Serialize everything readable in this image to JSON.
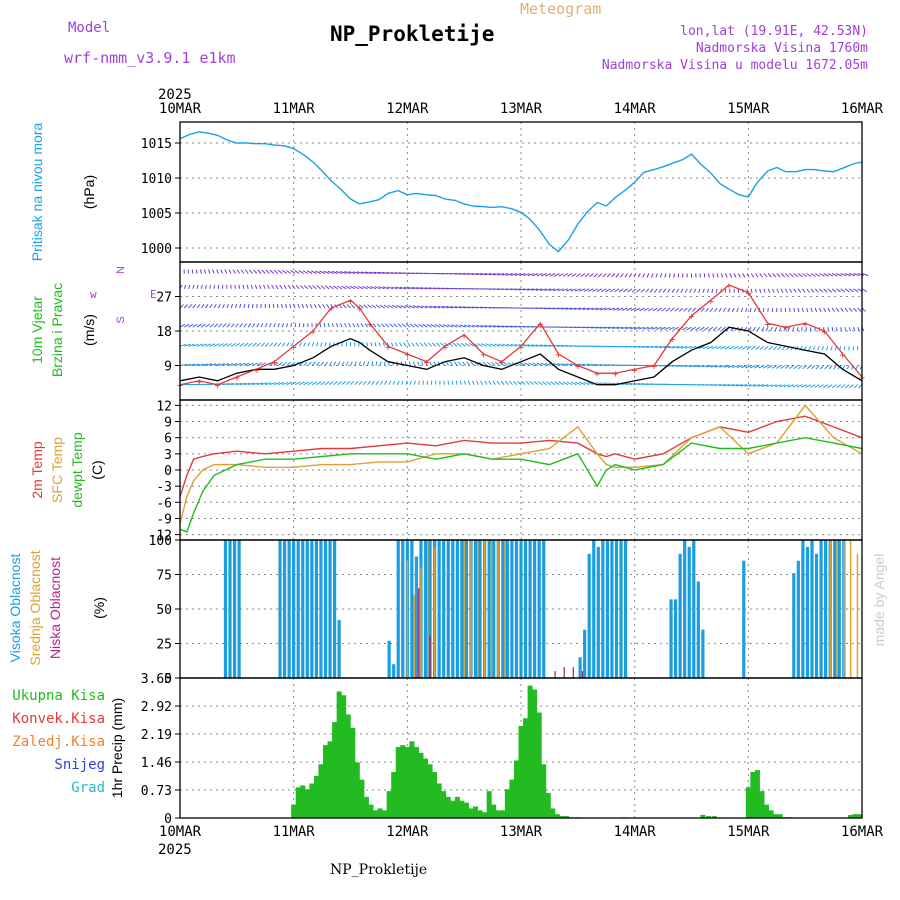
{
  "header": {
    "model_label": "Model",
    "model_name": "wrf-nmm_v3.9.1 e1km",
    "meteogram_label": "Meteogram",
    "station_name": "NP_Prokletije",
    "lonlat": "lon,lat (19.91E, 42.53N)",
    "altitude": "Nadmorska Visina 1760m",
    "model_altitude": "Nadmorska Visina u modelu 1672.05m",
    "footer_station": "NP_Prokletije",
    "watermark": "made by Angel"
  },
  "colors": {
    "pressure": "#1aa0e8",
    "wind_speed": "#000000",
    "gust": "#e23a3a",
    "temp_2m": "#e23a3a",
    "temp_sfc": "#e0a030",
    "dewpoint": "#22bb22",
    "cloud_high": "#1a9ee0",
    "cloud_mid": "#e0a030",
    "cloud_low": "#a0206a",
    "precip_total": "#22bb22",
    "grid": "#888888"
  },
  "chart_data": [
    {
      "type": "line",
      "panel": "pressure",
      "year": "2025",
      "x_tick_labels": [
        "10MAR",
        "11MAR",
        "12MAR",
        "13MAR",
        "14MAR",
        "15MAR",
        "16MAR"
      ],
      "ylabel_1": "Pritisak na nivou mora",
      "ylabel_2": "(hPa)",
      "yticks": [
        1000,
        1005,
        1010,
        1015
      ],
      "ylim": [
        998,
        1018
      ],
      "series": [
        {
          "name": "Pritisak na nivou mora",
          "x_days": [
            0,
            0.08,
            0.17,
            0.25,
            0.33,
            0.42,
            0.5,
            0.58,
            0.67,
            0.75,
            0.83,
            0.92,
            1.0,
            1.08,
            1.17,
            1.25,
            1.33,
            1.42,
            1.5,
            1.58,
            1.67,
            1.75,
            1.83,
            1.92,
            2.0,
            2.08,
            2.17,
            2.25,
            2.33,
            2.42,
            2.5,
            2.58,
            2.67,
            2.75,
            2.83,
            2.92,
            3.0,
            3.08,
            3.17,
            3.25,
            3.33,
            3.42,
            3.5,
            3.58,
            3.67,
            3.75,
            3.83,
            3.92,
            4.0,
            4.08,
            4.17,
            4.25,
            4.33,
            4.42,
            4.5,
            4.58,
            4.67,
            4.75,
            4.83,
            4.92,
            5.0,
            5.08,
            5.17,
            5.25,
            5.33,
            5.42,
            5.5,
            5.58,
            5.67,
            5.75,
            5.83,
            5.92,
            6.0
          ],
          "values": [
            1015.6,
            1016.2,
            1016.6,
            1016.4,
            1016.1,
            1015.4,
            1015.0,
            1015.0,
            1014.9,
            1014.9,
            1014.7,
            1014.6,
            1014.2,
            1013.4,
            1012.3,
            1011.0,
            1009.6,
            1008.3,
            1007.0,
            1006.3,
            1006.6,
            1006.9,
            1007.8,
            1008.2,
            1007.6,
            1007.8,
            1007.6,
            1007.5,
            1007.0,
            1006.8,
            1006.3,
            1006.0,
            1005.9,
            1005.8,
            1005.9,
            1005.6,
            1005.1,
            1004.1,
            1002.4,
            1000.5,
            999.5,
            1001.2,
            1003.4,
            1005.1,
            1006.5,
            1006.0,
            1007.2,
            1008.3,
            1009.4,
            1010.8,
            1011.2,
            1011.6,
            1012.1,
            1012.6,
            1013.4,
            1012.0,
            1010.7,
            1009.2,
            1008.4,
            1007.6,
            1007.3,
            1009.4,
            1011.0,
            1011.5,
            1010.9,
            1010.9,
            1011.2,
            1011.2,
            1011.0,
            1010.9,
            1011.4,
            1012.0,
            1012.3
          ]
        }
      ]
    },
    {
      "type": "line",
      "panel": "wind",
      "ylabel_1": "10m Vjetar",
      "ylabel_2": "Brzina i Pravac",
      "ylabel_3": "(m/s)",
      "legend_dirs": [
        "w",
        "E",
        "N",
        "S"
      ],
      "yticks": [
        9,
        18,
        27
      ],
      "ylim": [
        0,
        36
      ],
      "series": [
        {
          "name": "Brzina",
          "x_days": [
            0,
            0.17,
            0.33,
            0.5,
            0.67,
            0.83,
            1.0,
            1.17,
            1.33,
            1.5,
            1.58,
            1.67,
            1.83,
            2.0,
            2.17,
            2.33,
            2.5,
            2.67,
            2.83,
            3.0,
            3.17,
            3.33,
            3.5,
            3.67,
            3.83,
            4.0,
            4.17,
            4.33,
            4.5,
            4.67,
            4.83,
            5.0,
            5.17,
            5.33,
            5.5,
            5.67,
            5.83,
            6.0
          ],
          "values": [
            5,
            6,
            5,
            7,
            8,
            8,
            9,
            11,
            14,
            16,
            15,
            13,
            10,
            9,
            8,
            10,
            11,
            9,
            8,
            10,
            12,
            8,
            6,
            4,
            4,
            5,
            6,
            10,
            13,
            15,
            19,
            18,
            15,
            14,
            13,
            12,
            8,
            5
          ]
        },
        {
          "name": "Udar",
          "x_days": [
            0,
            0.17,
            0.33,
            0.5,
            0.67,
            0.83,
            1.0,
            1.17,
            1.33,
            1.5,
            1.58,
            1.67,
            1.83,
            2.0,
            2.17,
            2.33,
            2.5,
            2.67,
            2.83,
            3.0,
            3.17,
            3.33,
            3.5,
            3.67,
            3.83,
            4.0,
            4.17,
            4.33,
            4.5,
            4.67,
            4.83,
            5.0,
            5.17,
            5.33,
            5.5,
            5.67,
            5.83,
            6.0
          ],
          "values": [
            4,
            5,
            4,
            6,
            8,
            10,
            14,
            18,
            24,
            26,
            24,
            20,
            14,
            12,
            10,
            14,
            17,
            12,
            10,
            14,
            20,
            12,
            9,
            7,
            7,
            8,
            9,
            16,
            22,
            26,
            30,
            28,
            20,
            19,
            20,
            18,
            12,
            6
          ]
        }
      ]
    },
    {
      "type": "line",
      "panel": "temperature",
      "ylabel_1": "2m Temp",
      "ylabel_2": "SFC Temp",
      "ylabel_3": "dewpt Temp",
      "ylabel_4": "(C)",
      "yticks": [
        -12,
        -9,
        -6,
        -3,
        0,
        3,
        6,
        9,
        12
      ],
      "ylim": [
        -13,
        13
      ],
      "series": [
        {
          "name": "2m Temp",
          "x_days": [
            0,
            0.06,
            0.12,
            0.2,
            0.3,
            0.5,
            0.75,
            1.0,
            1.25,
            1.5,
            1.75,
            2.0,
            2.25,
            2.5,
            2.75,
            3.0,
            3.25,
            3.5,
            3.67,
            3.75,
            3.83,
            4.0,
            4.25,
            4.5,
            4.75,
            5.0,
            5.25,
            5.5,
            5.75,
            6.0
          ],
          "values": [
            -5,
            -1,
            2,
            2.5,
            3,
            3.5,
            3,
            3.5,
            4,
            4,
            4.5,
            5,
            4.5,
            5.5,
            5,
            5,
            5.5,
            5,
            3,
            2.5,
            3,
            2,
            3,
            6,
            8,
            7,
            9,
            10,
            8,
            6
          ]
        },
        {
          "name": "SFC Temp",
          "x_days": [
            0,
            0.06,
            0.12,
            0.2,
            0.3,
            0.5,
            0.75,
            1.0,
            1.25,
            1.5,
            1.75,
            2.0,
            2.25,
            2.5,
            2.75,
            3.0,
            3.25,
            3.5,
            3.67,
            3.75,
            3.83,
            4.0,
            4.25,
            4.5,
            4.75,
            5.0,
            5.25,
            5.5,
            5.75,
            6.0
          ],
          "values": [
            -10,
            -5,
            -2,
            0,
            1,
            1,
            0.5,
            0.5,
            1,
            1,
            1.5,
            1.5,
            3,
            3,
            2,
            3,
            4,
            8,
            3,
            1,
            0.5,
            0.5,
            1,
            6,
            8,
            3,
            5,
            12,
            6,
            3
          ]
        },
        {
          "name": "dewpt Temp",
          "x_days": [
            0,
            0.06,
            0.12,
            0.2,
            0.3,
            0.5,
            0.75,
            1.0,
            1.25,
            1.5,
            1.75,
            2.0,
            2.25,
            2.5,
            2.75,
            3.0,
            3.25,
            3.5,
            3.67,
            3.75,
            3.83,
            4.0,
            4.25,
            4.5,
            4.75,
            5.0,
            5.25,
            5.5,
            5.75,
            6.0
          ],
          "values": [
            -11,
            -11.5,
            -8,
            -4,
            -1,
            1,
            2,
            2,
            2.5,
            3,
            3,
            3,
            2,
            3,
            2,
            2,
            1,
            3,
            -3,
            0,
            1,
            0,
            1,
            5,
            4,
            4,
            5,
            6,
            5,
            4
          ]
        }
      ]
    },
    {
      "type": "bar",
      "panel": "clouds",
      "ylabel_1": "Visoka Oblacnost",
      "ylabel_2": "Srednja Oblacnost",
      "ylabel_3": "Niska Oblacnost",
      "ylabel_4": "(%)",
      "yticks": [
        0,
        25,
        50,
        75,
        100
      ],
      "ylim": [
        0,
        100
      ],
      "series": [
        {
          "name": "Visoka Oblacnost",
          "x_days": [
            0.4,
            0.44,
            0.48,
            0.52,
            0.88,
            0.92,
            0.96,
            1.0,
            1.04,
            1.08,
            1.12,
            1.16,
            1.2,
            1.24,
            1.28,
            1.32,
            1.36,
            1.4,
            1.84,
            1.88,
            1.92,
            1.96,
            2.0,
            2.04,
            2.08,
            2.12,
            2.16,
            2.2,
            2.24,
            2.28,
            2.32,
            2.36,
            2.4,
            2.44,
            2.48,
            2.52,
            2.56,
            2.6,
            2.64,
            2.68,
            2.72,
            2.76,
            2.8,
            2.84,
            2.88,
            2.92,
            2.96,
            3.0,
            3.04,
            3.08,
            3.12,
            3.16,
            3.2,
            3.52,
            3.56,
            3.6,
            3.64,
            3.68,
            3.72,
            3.76,
            3.8,
            3.84,
            3.88,
            3.92,
            4.32,
            4.36,
            4.4,
            4.44,
            4.48,
            4.52,
            4.56,
            4.6,
            4.96,
            5.4,
            5.44,
            5.48,
            5.52,
            5.56,
            5.6,
            5.64,
            5.68,
            5.72,
            5.76,
            5.8,
            5.84
          ],
          "values": [
            100,
            100,
            100,
            100,
            100,
            100,
            100,
            100,
            100,
            100,
            100,
            100,
            100,
            100,
            100,
            100,
            100,
            42,
            27,
            10,
            100,
            100,
            100,
            100,
            88,
            100,
            100,
            100,
            100,
            100,
            100,
            100,
            100,
            100,
            100,
            100,
            100,
            100,
            100,
            100,
            100,
            100,
            100,
            100,
            100,
            100,
            100,
            100,
            100,
            100,
            100,
            100,
            100,
            15,
            35,
            90,
            100,
            95,
            100,
            100,
            100,
            100,
            100,
            100,
            57,
            57,
            90,
            100,
            95,
            100,
            70,
            35,
            85,
            76,
            85,
            100,
            95,
            100,
            90,
            100,
            100,
            100,
            100,
            100,
            100
          ]
        },
        {
          "name": "Srednja Oblacnost",
          "x_days": [
            2.0,
            2.06,
            2.12,
            2.18,
            2.24,
            2.5,
            2.56,
            2.62,
            2.68,
            2.74,
            2.8,
            2.86,
            5.72,
            5.78,
            5.84,
            5.9,
            5.96
          ],
          "values": [
            85,
            60,
            80,
            100,
            95,
            100,
            100,
            100,
            100,
            100,
            100,
            100,
            100,
            100,
            100,
            100,
            90
          ]
        },
        {
          "name": "Niska Oblacnost",
          "x_days": [
            2.1,
            2.2,
            3.3,
            3.38,
            3.46,
            3.54
          ],
          "values": [
            65,
            30,
            5,
            8,
            8,
            5
          ]
        }
      ]
    },
    {
      "type": "bar",
      "panel": "precipitation",
      "legend": [
        "Ukupna Kisa",
        "Konvek.Kisa",
        "Zaledj.Kisa",
        "Snijeg",
        "Grad"
      ],
      "legend_colors": [
        "#22bb22",
        "#e23a3a",
        "#f08030",
        "#3040e0",
        "#20c0c0"
      ],
      "ylabel": "1hr Precip (mm)",
      "yticks": [
        "0",
        "0.73",
        "1.46",
        "2.19",
        "2.92",
        "3.65"
      ],
      "ylim": [
        0,
        3.65
      ],
      "series": [
        {
          "name": "Ukupna Kisa",
          "x_days": [
            1.0,
            1.04,
            1.08,
            1.12,
            1.16,
            1.2,
            1.24,
            1.28,
            1.32,
            1.36,
            1.4,
            1.44,
            1.48,
            1.52,
            1.56,
            1.6,
            1.64,
            1.68,
            1.72,
            1.76,
            1.8,
            1.84,
            1.88,
            1.92,
            1.96,
            2.0,
            2.04,
            2.08,
            2.12,
            2.16,
            2.2,
            2.24,
            2.28,
            2.32,
            2.36,
            2.4,
            2.44,
            2.48,
            2.52,
            2.56,
            2.6,
            2.64,
            2.68,
            2.72,
            2.76,
            2.8,
            2.84,
            2.88,
            2.92,
            2.96,
            3.0,
            3.04,
            3.08,
            3.12,
            3.16,
            3.2,
            3.24,
            3.28,
            3.32,
            3.36,
            3.4,
            3.44,
            3.5,
            3.9,
            4.6,
            4.65,
            4.7,
            5.0,
            5.04,
            5.08,
            5.12,
            5.16,
            5.2,
            5.24,
            5.28,
            5.32,
            5.36,
            5.9,
            5.94,
            5.98
          ],
          "values": [
            0.35,
            0.8,
            0.85,
            0.75,
            0.9,
            1.1,
            1.4,
            1.9,
            2.0,
            2.5,
            3.3,
            3.2,
            2.7,
            2.35,
            1.45,
            1.0,
            0.55,
            0.35,
            0.2,
            0.25,
            0.2,
            0.7,
            1.2,
            1.85,
            1.9,
            1.85,
            2.0,
            1.85,
            1.7,
            1.55,
            1.4,
            1.2,
            0.9,
            0.7,
            0.55,
            0.45,
            0.55,
            0.45,
            0.4,
            0.25,
            0.3,
            0.2,
            0.15,
            0.7,
            0.35,
            0.2,
            0.2,
            0.75,
            1.0,
            1.5,
            2.4,
            2.6,
            3.45,
            3.35,
            2.75,
            1.4,
            0.65,
            0.25,
            0.1,
            0.05,
            0.05,
            0.02,
            0.02,
            0.02,
            0.08,
            0.05,
            0.05,
            0.8,
            1.2,
            1.25,
            0.7,
            0.35,
            0.2,
            0.1,
            0.1,
            0.02,
            0.02,
            0.08,
            0.1,
            0.1
          ]
        }
      ]
    }
  ]
}
